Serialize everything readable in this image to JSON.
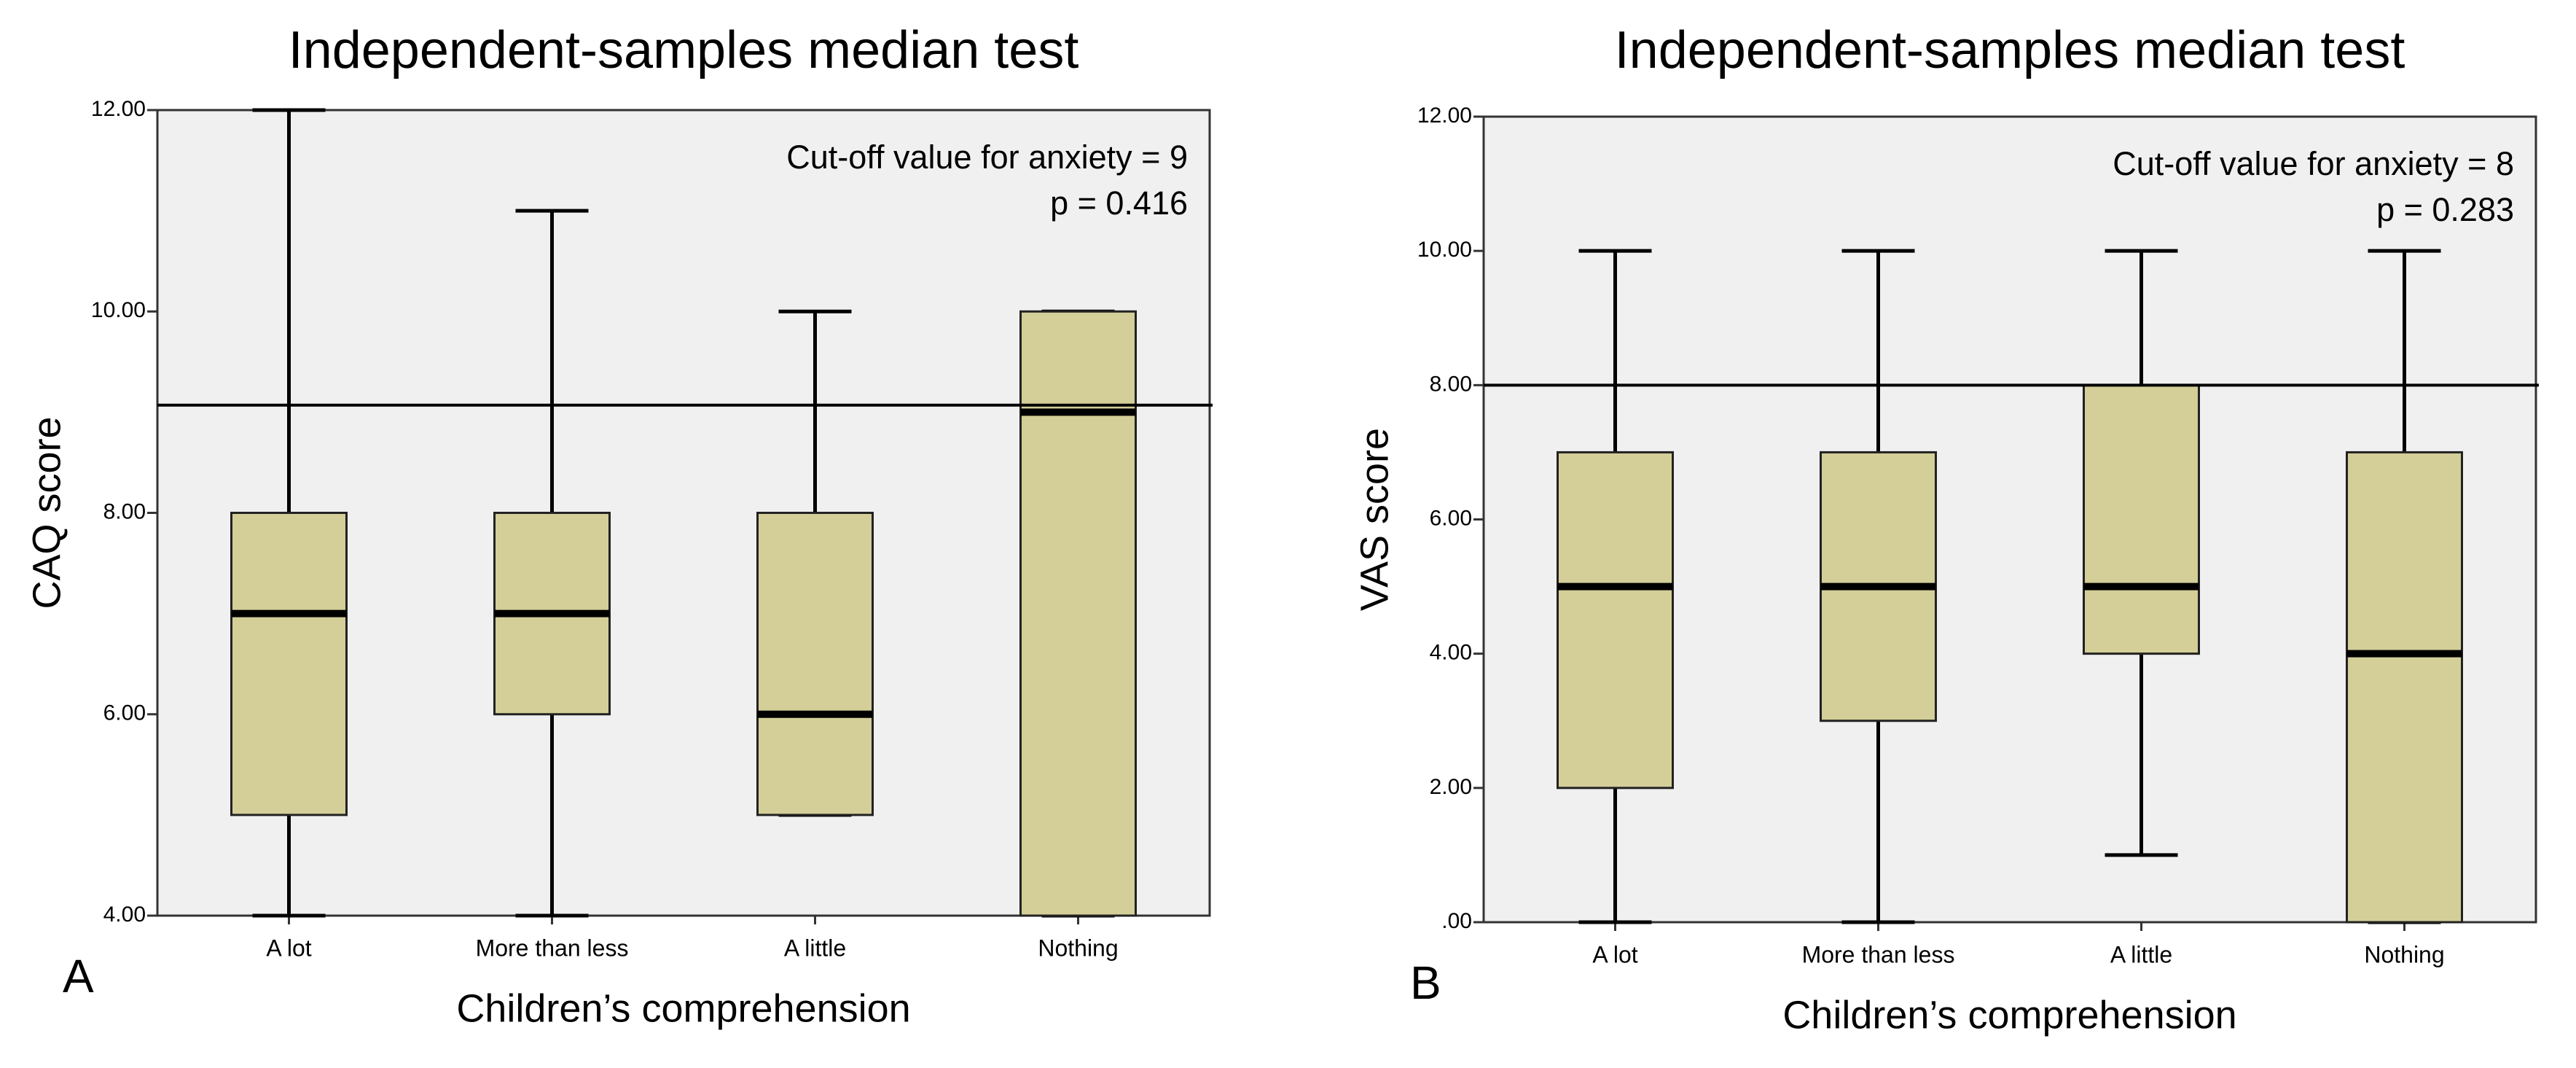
{
  "chart_data": [
    {
      "type": "box",
      "panel": "A",
      "title": "Independent-samples median test",
      "x_label": "Children’s comprehension",
      "y_label": "CAQ score",
      "annotations": [
        "Cut-off value for anxiety  = 9",
        "p = 0.416"
      ],
      "categories": [
        "A lot",
        "More than less",
        "A little",
        "Nothing"
      ],
      "stats": [
        {
          "min": 4,
          "q1": 5,
          "median": 7,
          "q3": 8,
          "max": 12
        },
        {
          "min": 4,
          "q1": 6,
          "median": 7,
          "q3": 8,
          "max": 11
        },
        {
          "min": 5,
          "q1": 5,
          "median": 6,
          "q3": 8,
          "max": 10
        },
        {
          "min": 4,
          "q1": 4,
          "median": 9,
          "q3": 10,
          "max": 10
        }
      ],
      "reference_line": 9.07,
      "color": "#d4cf98",
      "background": "#f0f0f0",
      "ylim": [
        4,
        12
      ],
      "yticks": [
        {
          "value": 4,
          "label": "4.00"
        },
        {
          "value": 6,
          "label": "6.00"
        },
        {
          "value": 8,
          "label": "8.00"
        },
        {
          "value": 10,
          "label": "10.00"
        },
        {
          "value": 12,
          "label": "12.00"
        }
      ],
      "grid": false
    },
    {
      "type": "box",
      "panel": "B",
      "title": "Independent-samples median test",
      "x_label": "Children’s comprehension",
      "y_label": "VAS score",
      "annotations": [
        "Cut-off value for anxiety = 8",
        "p = 0.283"
      ],
      "categories": [
        "A lot",
        "More than less",
        "A little",
        "Nothing"
      ],
      "stats": [
        {
          "min": 0,
          "q1": 2,
          "median": 5,
          "q3": 7,
          "max": 10
        },
        {
          "min": 0,
          "q1": 3,
          "median": 5,
          "q3": 7,
          "max": 10
        },
        {
          "min": 1,
          "q1": 4,
          "median": 5,
          "q3": 8,
          "max": 10
        },
        {
          "min": 0,
          "q1": 0,
          "median": 4,
          "q3": 7,
          "max": 10
        }
      ],
      "reference_line": 8,
      "color": "#d4cf98",
      "background": "#f0f0f0",
      "ylim": [
        0,
        12
      ],
      "yticks": [
        {
          "value": 0,
          "label": ".00"
        },
        {
          "value": 2,
          "label": "2.00"
        },
        {
          "value": 4,
          "label": "4.00"
        },
        {
          "value": 6,
          "label": "6.00"
        },
        {
          "value": 8,
          "label": "8.00"
        },
        {
          "value": 10,
          "label": "10.00"
        },
        {
          "value": 12,
          "label": "12.00"
        }
      ],
      "grid": false
    }
  ]
}
